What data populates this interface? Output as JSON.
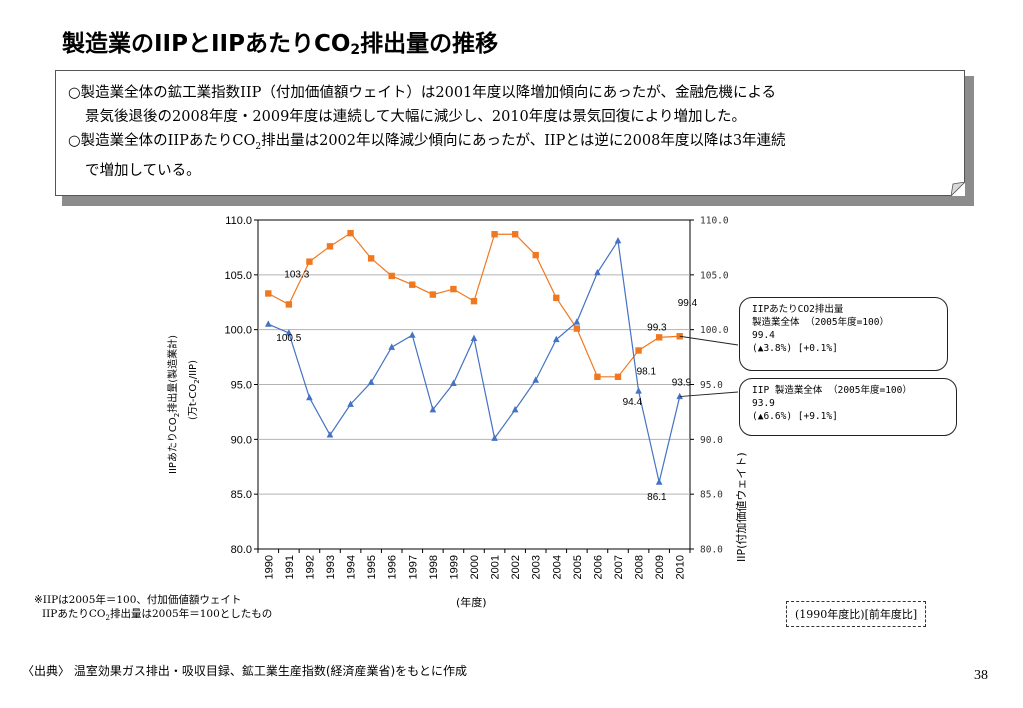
{
  "page": {
    "title_pre": "製造業のIIPとIIPあたりCO",
    "title_sub": "2",
    "title_post": "排出量の推移",
    "page_number": "38",
    "source": "〈出典〉 温室効果ガス排出・吸収目録、鉱工業生産指数(経済産業省)をもとに作成"
  },
  "note": {
    "line1": "○製造業全体の鉱工業指数IIP（付加価値額ウェイト）は2001年度以降増加傾向にあったが、金融危機による",
    "line2": "景気後退後の2008年度・2009年度は連続して大幅に減少し、2010年度は景気回復により増加した。",
    "line3_pre": "○製造業全体のIIPあたりCO",
    "line3_sub": "2",
    "line3_post": "排出量は2002年以降減少傾向にあったが、IIPとは逆に2008年度以降は3年連続",
    "line4": "で増加している。"
  },
  "axes": {
    "y1_label_pre": "IIPあたりCO",
    "y1_label_sub": "2",
    "y1_label_post": "排出量(製造業計)",
    "y1_unit_pre": "(万t-CO",
    "y1_unit_sub": "2",
    "y1_unit_post": "/IIP)",
    "y2_label": "IIP(付加価値ウェイト)",
    "x_label": "(年度)"
  },
  "callouts": {
    "co2": {
      "line1": "IIPあたりCO2排出量",
      "line2": "製造業全体 （2005年度=100）",
      "line3": "99.4",
      "line4": "(▲3.8%) [+0.1%]"
    },
    "iip": {
      "line1": "IIP 製造業全体 （2005年度=100）",
      "line2": "93.9",
      "line3": "(▲6.6%) [+9.1%]"
    }
  },
  "footnote": {
    "line1": "※IIPは2005年＝100、付加価値額ウェイト",
    "line2_pre": "IIPあたりCO",
    "line2_sub": "2",
    "line2_post": "排出量は2005年＝100としたもの"
  },
  "legend_box": "(1990年度比)[前年度比]",
  "chart_data": {
    "type": "line",
    "categories": [
      "1990",
      "1991",
      "1992",
      "1993",
      "1994",
      "1995",
      "1996",
      "1997",
      "1998",
      "1999",
      "2000",
      "2001",
      "2002",
      "2003",
      "2004",
      "2005",
      "2006",
      "2007",
      "2008",
      "2009",
      "2010"
    ],
    "ylim": [
      80.0,
      110.0
    ],
    "yticks": [
      "80.0",
      "85.0",
      "90.0",
      "95.0",
      "100.0",
      "105.0",
      "110.0"
    ],
    "y2ticks": [
      "80.0",
      "85.0",
      "90.0",
      "95.0",
      "100.0",
      "105.0",
      "110.0"
    ],
    "grid": true,
    "series": [
      {
        "name": "IIPあたりCO2排出量 製造業全体",
        "color": "#f07820",
        "marker": "square",
        "values": [
          103.3,
          102.3,
          106.2,
          107.6,
          108.8,
          106.5,
          104.9,
          104.1,
          103.2,
          103.7,
          102.6,
          108.7,
          108.7,
          106.8,
          102.9,
          100.1,
          95.7,
          95.7,
          98.1,
          99.3,
          99.4
        ]
      },
      {
        "name": "IIP 製造業全体",
        "color": "#4472c4",
        "marker": "triangle",
        "values": [
          100.5,
          99.7,
          93.8,
          90.4,
          93.2,
          95.2,
          98.4,
          99.5,
          92.7,
          95.1,
          99.2,
          90.1,
          92.7,
          95.4,
          99.1,
          100.7,
          105.2,
          108.1,
          94.4,
          86.1,
          93.9
        ]
      }
    ],
    "data_labels": [
      {
        "series": 0,
        "index": 0,
        "text": "103.3"
      },
      {
        "series": 1,
        "index": 0,
        "text": "100.5"
      },
      {
        "series": 0,
        "index": 18,
        "text": "98.1"
      },
      {
        "series": 0,
        "index": 19,
        "text": "99.3"
      },
      {
        "series": 0,
        "index": 20,
        "text": "99.4"
      },
      {
        "series": 1,
        "index": 18,
        "text": "94.4"
      },
      {
        "series": 1,
        "index": 19,
        "text": "86.1"
      },
      {
        "series": 1,
        "index": 20,
        "text": "93.9"
      }
    ]
  }
}
